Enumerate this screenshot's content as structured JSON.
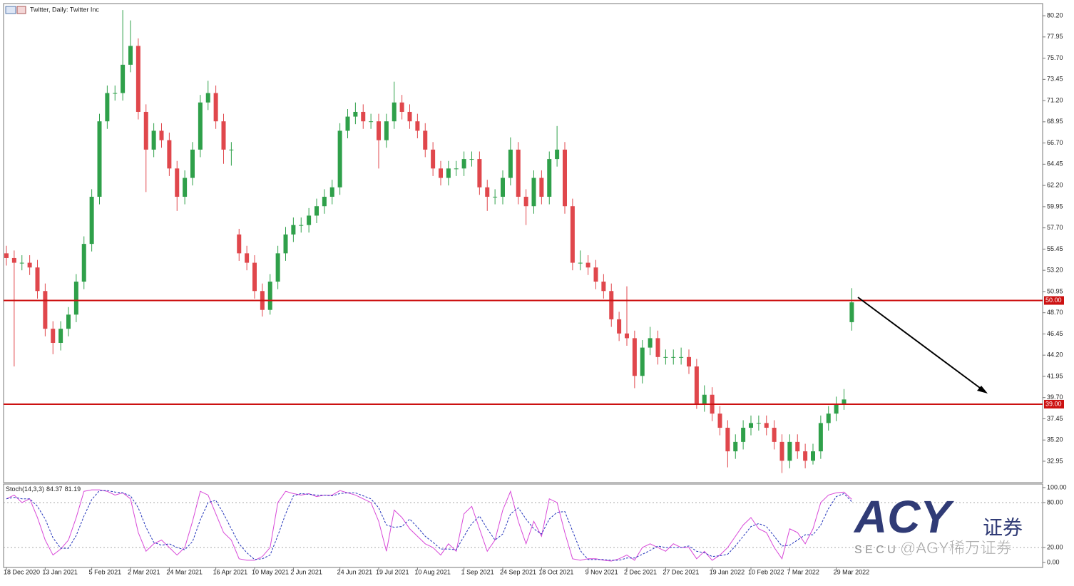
{
  "header": "Twitter, Daily:  Twitter Inc",
  "chart_data": [
    {
      "type": "candlestick",
      "categories": [
        "18 Dec 2020",
        null,
        null,
        null,
        null,
        "13 Jan 2021",
        null,
        null,
        null,
        null,
        null,
        "5 Feb 2021",
        null,
        null,
        null,
        null,
        "2 Mar 2021",
        null,
        null,
        null,
        null,
        "24 Mar 2021",
        null,
        null,
        null,
        null,
        null,
        "16 Apr 2021",
        null,
        null,
        null,
        null,
        "10 May 2021",
        null,
        null,
        null,
        null,
        "2 Jun 2021",
        null,
        null,
        null,
        null,
        null,
        "24 Jun 2021",
        null,
        null,
        null,
        null,
        "19 Jul 2021",
        null,
        null,
        null,
        null,
        "10 Aug 2021",
        null,
        null,
        null,
        null,
        null,
        "1 Sep 2021",
        null,
        null,
        null,
        null,
        "24 Sep 2021",
        null,
        null,
        null,
        null,
        "18 Oct 2021",
        null,
        null,
        null,
        null,
        null,
        "9 Nov 2021",
        null,
        null,
        null,
        null,
        "2 Dec 2021",
        null,
        null,
        null,
        null,
        "27 Dec 2021",
        null,
        null,
        null,
        null,
        null,
        "19 Jan 2022",
        null,
        null,
        null,
        null,
        "10 Feb 2022",
        null,
        null,
        null,
        null,
        "7 Mar 2022",
        null,
        null,
        null,
        null,
        null,
        "29 Mar 2022",
        null,
        null
      ],
      "open": [
        55,
        54.5,
        54,
        54,
        53.5,
        51,
        47,
        45.5,
        47,
        48.5,
        52,
        56,
        61,
        69,
        72,
        72,
        75,
        77,
        70,
        66,
        68,
        67,
        64,
        61,
        63,
        66,
        71,
        72,
        69,
        66,
        57,
        55,
        54,
        51,
        49,
        52,
        55,
        57,
        58,
        58,
        59,
        60,
        61,
        62,
        68,
        69.5,
        70,
        69,
        69,
        67,
        69,
        71,
        70,
        69,
        68,
        66,
        64,
        63,
        64,
        64,
        65,
        65,
        62,
        61,
        61,
        63,
        66,
        61,
        60,
        63,
        61,
        65,
        66,
        60,
        54,
        54,
        53.5,
        52,
        51,
        48,
        46.5,
        46,
        42,
        45,
        46,
        44,
        44,
        44,
        44,
        43,
        39,
        40,
        38,
        36.5,
        34,
        35,
        36.5,
        37,
        37,
        36.5,
        35,
        33,
        35,
        34,
        33,
        34,
        37,
        38,
        39,
        47.7
      ],
      "high": [
        55.8,
        55.3,
        54.8,
        54.8,
        54.3,
        51.8,
        47.8,
        47.8,
        49.3,
        52.8,
        56.8,
        61.8,
        69.8,
        72.8,
        72.8,
        80.8,
        79.7,
        77.8,
        70.8,
        68.8,
        68.8,
        67.8,
        64.8,
        63.8,
        66.8,
        71.8,
        73.3,
        72.8,
        69.8,
        66.8,
        57.6,
        55.8,
        54.8,
        51.8,
        52.8,
        55.8,
        57.8,
        58.8,
        58.8,
        59.8,
        60.8,
        61.8,
        62.8,
        68.8,
        70.3,
        71,
        70.8,
        69.8,
        69.8,
        69.8,
        73.2,
        71.8,
        70.8,
        69.8,
        68.8,
        66.8,
        64.8,
        64.8,
        64.8,
        65.8,
        65.8,
        65.8,
        62.8,
        61.8,
        63.8,
        67.3,
        66.8,
        61.8,
        63.8,
        63.8,
        65.8,
        68.5,
        66.8,
        60.8,
        55.3,
        54.8,
        54.3,
        52.8,
        51.8,
        48.8,
        51.5,
        46.8,
        45.8,
        47.2,
        46.8,
        44.8,
        44.8,
        45,
        44.8,
        43.8,
        41,
        40.8,
        38.8,
        37.3,
        35.8,
        37.3,
        37.8,
        37.8,
        37.8,
        37.3,
        35.8,
        35.8,
        35.8,
        34.8,
        34.8,
        37.8,
        38.8,
        39.8,
        40.6,
        51.3
      ],
      "low": [
        53.7,
        43,
        53.2,
        52.7,
        50.2,
        46.2,
        44.3,
        44.7,
        46.2,
        47.7,
        51.2,
        55.2,
        60.2,
        68.2,
        71.2,
        71.2,
        74.2,
        69.2,
        61.5,
        65.2,
        66.2,
        63.2,
        59.5,
        60.2,
        62.2,
        65.2,
        70.2,
        68.2,
        64.5,
        64.3,
        54.2,
        53.2,
        50.2,
        48.3,
        48.5,
        51.2,
        54.2,
        56.2,
        57.2,
        57.2,
        58.2,
        59.2,
        60.2,
        61.2,
        67.2,
        68.7,
        68.2,
        68.2,
        64,
        66.2,
        68.2,
        69.2,
        68.2,
        67.2,
        65.2,
        63.2,
        62.2,
        62.2,
        63.2,
        63.2,
        64.2,
        61.2,
        59.5,
        60.2,
        60.2,
        62.2,
        60.2,
        58,
        59.2,
        60.2,
        60.2,
        64.2,
        59.2,
        53.2,
        53.2,
        52.7,
        51.2,
        50.2,
        47.2,
        45.7,
        45.2,
        40.7,
        41.2,
        44.2,
        43.2,
        43.2,
        43.2,
        43.2,
        42.2,
        38.5,
        38.2,
        37.2,
        35.7,
        32.3,
        33.2,
        34.2,
        35.7,
        36.2,
        35.7,
        34.2,
        31.7,
        32.2,
        33.2,
        32.2,
        32.6,
        33.2,
        36.2,
        37.2,
        38.4,
        46.8
      ],
      "close": [
        54.5,
        54,
        54,
        53.5,
        51,
        47,
        45.5,
        47,
        48.5,
        52,
        56,
        61,
        69,
        72,
        72,
        75,
        77,
        70,
        66,
        68,
        67,
        64,
        61,
        63,
        66,
        71,
        72,
        69,
        66,
        66,
        55,
        54,
        51,
        49,
        52,
        55,
        57,
        58,
        58,
        59,
        60,
        61,
        62,
        68,
        69.5,
        70,
        69,
        69,
        67,
        69,
        71,
        70,
        69,
        68,
        66,
        64,
        63,
        64,
        64,
        65,
        65,
        62,
        61,
        61,
        63,
        66,
        61,
        60,
        63,
        61,
        65,
        66,
        60,
        54,
        54,
        53.5,
        52,
        51,
        48,
        46.5,
        46,
        42,
        45,
        46,
        44,
        44,
        44,
        44,
        43,
        39,
        40,
        38,
        36.5,
        34,
        35,
        36.5,
        37,
        37,
        36.5,
        35,
        33,
        35,
        34,
        33,
        34,
        37,
        38,
        39,
        39.5,
        49.8
      ],
      "up_color": "#2fa04a",
      "down_color": "#e0474c",
      "ylim": [
        30.68,
        81.49
      ],
      "yticks": [
        {
          "value": 80.2,
          "label": "80.20"
        },
        77.95,
        {
          "value": 75.7,
          "label": "75.70"
        },
        73.45,
        {
          "value": 71.2,
          "label": "71.20"
        },
        68.95,
        {
          "value": 66.7,
          "label": "66.70"
        },
        64.45,
        {
          "value": 62.2,
          "label": "62.20"
        },
        59.95,
        {
          "value": 57.7,
          "label": "57.70"
        },
        55.45,
        {
          "value": 53.2,
          "label": "53.20"
        },
        50.95,
        {
          "value": 48.7,
          "label": "48.70"
        },
        46.45,
        {
          "value": 44.2,
          "label": "44.20"
        },
        41.95,
        {
          "value": 39.7,
          "label": "39.70"
        },
        37.45,
        {
          "value": 35.2,
          "label": "35.20"
        },
        32.95
      ],
      "levels": [
        {
          "value": 50,
          "label": "50.00"
        },
        {
          "value": 39,
          "label": "39.00"
        }
      ],
      "level_color": "#cc1111"
    },
    {
      "type": "line",
      "title": "Stoch(14,3,3)",
      "series": [
        {
          "color": "#d848d8",
          "style": "solid",
          "values": [
            85,
            90,
            80,
            85,
            60,
            30,
            10,
            18,
            30,
            60,
            95,
            97,
            97,
            95,
            90,
            93,
            85,
            40,
            15,
            25,
            30,
            20,
            10,
            20,
            55,
            95,
            90,
            65,
            40,
            30,
            5,
            3,
            3,
            8,
            20,
            80,
            95,
            92,
            90,
            92,
            88,
            90,
            90,
            96,
            93,
            90,
            85,
            80,
            55,
            15,
            70,
            60,
            45,
            35,
            25,
            20,
            10,
            25,
            15,
            65,
            75,
            45,
            15,
            30,
            70,
            95,
            55,
            25,
            55,
            35,
            85,
            80,
            40,
            5,
            3,
            5,
            5,
            3,
            2,
            5,
            10,
            3,
            20,
            25,
            20,
            15,
            25,
            20,
            20,
            5,
            15,
            3,
            10,
            20,
            35,
            50,
            60,
            45,
            40,
            20,
            5,
            45,
            40,
            25,
            45,
            80,
            90,
            93,
            94,
            84.37
          ]
        },
        {
          "color": "#2233bb",
          "style": "dashed",
          "values": [
            85,
            87,
            85,
            85,
            75,
            58,
            33,
            19,
            19,
            36,
            62,
            84,
            96,
            96,
            94,
            93,
            89,
            73,
            47,
            27,
            23,
            25,
            20,
            17,
            28,
            57,
            80,
            83,
            65,
            45,
            25,
            13,
            4,
            5,
            10,
            36,
            65,
            89,
            92,
            91,
            90,
            90,
            89,
            92,
            93,
            93,
            89,
            85,
            73,
            50,
            47,
            48,
            58,
            47,
            35,
            27,
            18,
            18,
            17,
            35,
            52,
            62,
            45,
            30,
            38,
            65,
            73,
            58,
            45,
            38,
            58,
            67,
            68,
            42,
            16,
            4,
            4,
            4,
            3,
            3,
            6,
            6,
            11,
            16,
            22,
            20,
            20,
            20,
            22,
            15,
            13,
            8,
            9,
            11,
            22,
            35,
            48,
            52,
            48,
            35,
            22,
            23,
            30,
            37,
            37,
            50,
            72,
            88,
            92,
            81.19
          ]
        }
      ],
      "ylim": [
        -6.6,
        104.7
      ],
      "yticks": [
        {
          "value": 100,
          "label": "100.00"
        },
        {
          "value": 80,
          "label": "80.00"
        },
        {
          "value": 20,
          "label": "20.00"
        },
        {
          "value": 0,
          "label": "0.00"
        }
      ],
      "levels": [
        80,
        20
      ]
    }
  ],
  "watermark": {
    "logo": "ACY",
    "logo_cn": "证券",
    "sub": "S E C U",
    "handle": "@AGY稀万证券"
  }
}
